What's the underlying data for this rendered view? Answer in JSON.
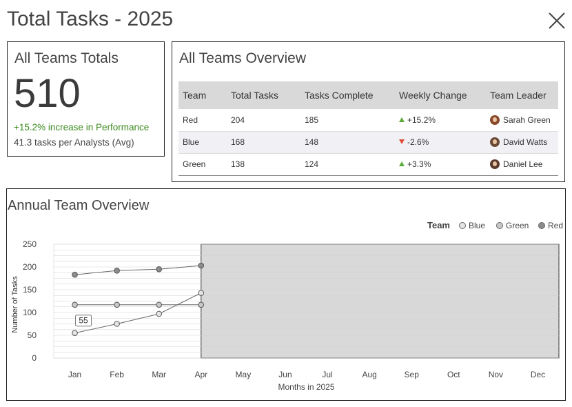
{
  "page": {
    "title": "Total Tasks - 2025",
    "close_icon": "close-icon"
  },
  "totals": {
    "heading": "All Teams Totals",
    "value": "510",
    "increase": "+15.2% increase in Performance",
    "avg": "41.3 tasks per Analysts (Avg)",
    "increase_color": "#3b8a1e"
  },
  "overview": {
    "heading": "All Teams Overview",
    "columns": [
      "Team",
      "Total Tasks",
      "Tasks Complete",
      "Weekly Change",
      "Team Leader"
    ],
    "rows": [
      {
        "team": "Red",
        "total": "204",
        "complete": "185",
        "change": "+15.2%",
        "direction": "up",
        "leader": "Sarah Green",
        "avatar_color": "#8a4a2c"
      },
      {
        "team": "Blue",
        "total": "168",
        "complete": "148",
        "change": "-2.6%",
        "direction": "down",
        "leader": "David Watts",
        "avatar_color": "#6a4a36"
      },
      {
        "team": "Green",
        "total": "138",
        "complete": "124",
        "change": "+3.3%",
        "direction": "up",
        "leader": "Daniel Lee",
        "avatar_color": "#5a3a2a"
      }
    ],
    "colors": {
      "up": "#5aab3a",
      "down": "#e04a3a",
      "header_bg": "#d9d9d9"
    }
  },
  "annual": {
    "heading": "Annual Team Overview",
    "legend_title": "Team"
  },
  "chart_data": {
    "type": "line",
    "title": "Annual Team Overview",
    "xlabel": "Months in 2025",
    "ylabel": "Number of Tasks",
    "categories": [
      "Jan",
      "Feb",
      "Mar",
      "Apr",
      "May",
      "Jun",
      "Jul",
      "Aug",
      "Sep",
      "Oct",
      "Nov",
      "Dec"
    ],
    "ylim": [
      0,
      250
    ],
    "yticks": [
      0,
      50,
      100,
      150,
      200,
      250
    ],
    "grid": true,
    "legend_placement": "top-right",
    "series": [
      {
        "name": "Blue",
        "values": [
          55,
          75,
          97,
          143,
          null,
          null,
          null,
          null,
          null,
          null,
          null,
          null
        ],
        "color": "#e4e4e4"
      },
      {
        "name": "Green",
        "values": [
          117,
          117,
          117,
          117,
          null,
          null,
          null,
          null,
          null,
          null,
          null,
          null
        ],
        "color": "#c8c8c8"
      },
      {
        "name": "Red",
        "values": [
          183,
          192,
          195,
          203,
          null,
          null,
          null,
          null,
          null,
          null,
          null,
          null
        ],
        "color": "#8c8c8c"
      }
    ],
    "annotations": [
      {
        "series": "Blue",
        "category": "Jan",
        "text": "55"
      }
    ],
    "future_region": {
      "from": "Apr",
      "to": "Dec",
      "color": "#d9d9d9"
    }
  }
}
